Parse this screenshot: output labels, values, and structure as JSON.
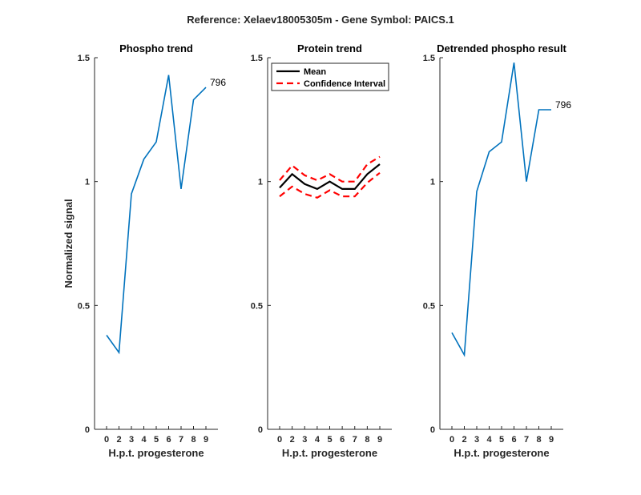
{
  "figure": {
    "suptitle": "Reference:  Xelaev18005305m - Gene Symbol:  PAICS.1"
  },
  "chart_data": [
    {
      "type": "line",
      "title": "Phospho trend",
      "xlabel": "H.p.t. progesterone",
      "ylabel": "Normalized signal",
      "categories": [
        "0",
        "2",
        "3",
        "4",
        "5",
        "6",
        "7",
        "8",
        "9"
      ],
      "ylim": [
        0,
        1.5
      ],
      "yticks": [
        0,
        0.5,
        1,
        1.5
      ],
      "ytick_labels": [
        "0",
        "0.5",
        "1",
        "1.5"
      ],
      "series": [
        {
          "color": "#0072BD",
          "style": "solid",
          "values": [
            0.38,
            0.31,
            0.95,
            1.09,
            1.16,
            1.43,
            0.97,
            1.33,
            1.38
          ]
        }
      ],
      "annotation": {
        "text": "796",
        "at_index": 8
      }
    },
    {
      "type": "line",
      "title": "Protein trend",
      "xlabel": "H.p.t. progesterone",
      "ylabel": "",
      "categories": [
        "0",
        "2",
        "3",
        "4",
        "5",
        "6",
        "7",
        "8",
        "9"
      ],
      "ylim": [
        0,
        1.5
      ],
      "yticks": [
        0,
        0.5,
        1,
        1.5
      ],
      "ytick_labels": [
        "0",
        "0.5",
        "1",
        "1.5"
      ],
      "legend_position": "top-left",
      "series": [
        {
          "name": "Mean",
          "color": "#000000",
          "style": "solid",
          "values": [
            0.975,
            1.03,
            0.99,
            0.97,
            1.0,
            0.97,
            0.97,
            1.03,
            1.07
          ]
        },
        {
          "name": "Confidence Interval",
          "color": "#FF0000",
          "style": "dashed",
          "values": [
            1.005,
            1.065,
            1.025,
            1.005,
            1.03,
            1.0,
            1.0,
            1.07,
            1.1
          ]
        },
        {
          "color": "#FF0000",
          "style": "dashed",
          "values": [
            0.94,
            0.98,
            0.95,
            0.935,
            0.965,
            0.94,
            0.94,
            0.995,
            1.035
          ]
        }
      ]
    },
    {
      "type": "line",
      "title": "Detrended phospho result",
      "xlabel": "H.p.t. progesterone",
      "ylabel": "",
      "categories": [
        "0",
        "2",
        "3",
        "4",
        "5",
        "6",
        "7",
        "8",
        "9"
      ],
      "ylim": [
        0,
        1.5
      ],
      "yticks": [
        0,
        0.5,
        1,
        1.5
      ],
      "ytick_labels": [
        "0",
        "0.5",
        "1",
        "1.5"
      ],
      "series": [
        {
          "color": "#0072BD",
          "style": "solid",
          "values": [
            0.39,
            0.3,
            0.96,
            1.12,
            1.16,
            1.48,
            1.0,
            1.29,
            1.29
          ]
        }
      ],
      "annotation": {
        "text": "796",
        "at_index": 8
      }
    }
  ]
}
